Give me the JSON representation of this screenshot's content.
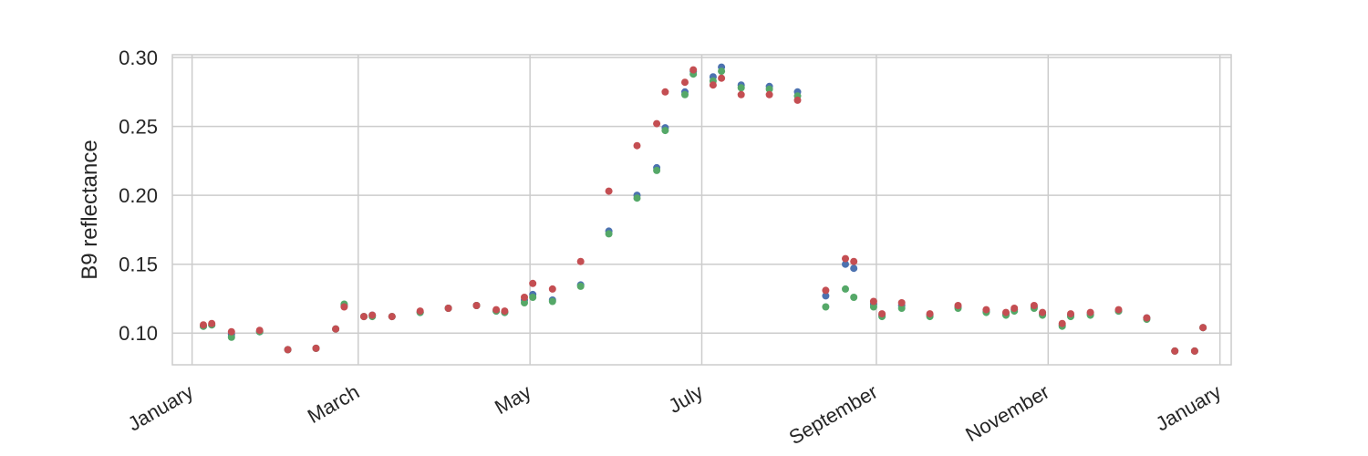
{
  "chart_data": {
    "type": "scatter",
    "title": "",
    "xlabel": "",
    "ylabel": "B9 reflectance",
    "x_axis_type": "date",
    "xlim": [
      "2017-12-25",
      "2019-01-05"
    ],
    "ylim": [
      0.077,
      0.302
    ],
    "x_ticks": [
      {
        "date": "2018-01-01",
        "label": "January"
      },
      {
        "date": "2018-03-01",
        "label": "March"
      },
      {
        "date": "2018-05-01",
        "label": "May"
      },
      {
        "date": "2018-07-01",
        "label": "July"
      },
      {
        "date": "2018-09-01",
        "label": "September"
      },
      {
        "date": "2018-11-01",
        "label": "November"
      },
      {
        "date": "2019-01-01",
        "label": "January"
      }
    ],
    "y_ticks": [
      0.1,
      0.15,
      0.2,
      0.25,
      0.3
    ],
    "y_tick_labels": [
      "0.10",
      "0.15",
      "0.20",
      "0.25",
      "0.30"
    ],
    "grid": true,
    "legend": "none",
    "series": [
      {
        "color": "#4C72B0",
        "points": [
          [
            "2018-01-05",
            0.105
          ],
          [
            "2018-01-08",
            0.106
          ],
          [
            "2018-01-15",
            0.099
          ],
          [
            "2018-01-25",
            0.101
          ],
          [
            "2018-02-04",
            0.088
          ],
          [
            "2018-02-14",
            0.089
          ],
          [
            "2018-02-21",
            0.103
          ],
          [
            "2018-02-24",
            0.12
          ],
          [
            "2018-03-03",
            0.112
          ],
          [
            "2018-03-06",
            0.113
          ],
          [
            "2018-03-13",
            0.112
          ],
          [
            "2018-03-23",
            0.115
          ],
          [
            "2018-04-02",
            0.118
          ],
          [
            "2018-04-12",
            0.12
          ],
          [
            "2018-04-19",
            0.116
          ],
          [
            "2018-04-22",
            0.115
          ],
          [
            "2018-04-29",
            0.124
          ],
          [
            "2018-05-02",
            0.128
          ],
          [
            "2018-05-09",
            0.124
          ],
          [
            "2018-05-19",
            0.135
          ],
          [
            "2018-05-29",
            0.174
          ],
          [
            "2018-06-08",
            0.2
          ],
          [
            "2018-06-15",
            0.22
          ],
          [
            "2018-06-18",
            0.249
          ],
          [
            "2018-06-25",
            0.275
          ],
          [
            "2018-06-28",
            0.29
          ],
          [
            "2018-07-05",
            0.286
          ],
          [
            "2018-07-08",
            0.293
          ],
          [
            "2018-07-15",
            0.28
          ],
          [
            "2018-07-25",
            0.279
          ],
          [
            "2018-08-04",
            0.275
          ],
          [
            "2018-08-14",
            0.127
          ],
          [
            "2018-08-21",
            0.15
          ],
          [
            "2018-08-24",
            0.147
          ],
          [
            "2018-08-31",
            0.121
          ],
          [
            "2018-09-03",
            0.113
          ],
          [
            "2018-09-10",
            0.12
          ],
          [
            "2018-09-20",
            0.113
          ],
          [
            "2018-09-30",
            0.119
          ],
          [
            "2018-10-10",
            0.116
          ],
          [
            "2018-10-17",
            0.114
          ],
          [
            "2018-10-20",
            0.117
          ],
          [
            "2018-10-27",
            0.119
          ],
          [
            "2018-10-30",
            0.114
          ],
          [
            "2018-11-06",
            0.106
          ],
          [
            "2018-11-09",
            0.113
          ],
          [
            "2018-11-16",
            0.114
          ],
          [
            "2018-11-26",
            0.116
          ],
          [
            "2018-12-06",
            0.111
          ],
          [
            "2018-12-16",
            0.087
          ],
          [
            "2018-12-23",
            0.087
          ],
          [
            "2018-12-26",
            0.104
          ]
        ]
      },
      {
        "color": "#55A868",
        "points": [
          [
            "2018-01-05",
            0.105
          ],
          [
            "2018-01-08",
            0.106
          ],
          [
            "2018-01-15",
            0.097
          ],
          [
            "2018-01-25",
            0.101
          ],
          [
            "2018-02-04",
            0.088
          ],
          [
            "2018-02-14",
            0.089
          ],
          [
            "2018-02-21",
            0.103
          ],
          [
            "2018-02-24",
            0.121
          ],
          [
            "2018-03-03",
            0.112
          ],
          [
            "2018-03-06",
            0.112
          ],
          [
            "2018-03-13",
            0.112
          ],
          [
            "2018-03-23",
            0.115
          ],
          [
            "2018-04-02",
            0.118
          ],
          [
            "2018-04-12",
            0.12
          ],
          [
            "2018-04-19",
            0.116
          ],
          [
            "2018-04-22",
            0.115
          ],
          [
            "2018-04-29",
            0.122
          ],
          [
            "2018-05-02",
            0.126
          ],
          [
            "2018-05-09",
            0.123
          ],
          [
            "2018-05-19",
            0.134
          ],
          [
            "2018-05-29",
            0.172
          ],
          [
            "2018-06-08",
            0.198
          ],
          [
            "2018-06-15",
            0.218
          ],
          [
            "2018-06-18",
            0.247
          ],
          [
            "2018-06-25",
            0.273
          ],
          [
            "2018-06-28",
            0.288
          ],
          [
            "2018-07-05",
            0.283
          ],
          [
            "2018-07-08",
            0.29
          ],
          [
            "2018-07-15",
            0.278
          ],
          [
            "2018-07-25",
            0.277
          ],
          [
            "2018-08-04",
            0.272
          ],
          [
            "2018-08-14",
            0.119
          ],
          [
            "2018-08-21",
            0.132
          ],
          [
            "2018-08-24",
            0.126
          ],
          [
            "2018-08-31",
            0.119
          ],
          [
            "2018-09-03",
            0.112
          ],
          [
            "2018-09-10",
            0.118
          ],
          [
            "2018-09-20",
            0.112
          ],
          [
            "2018-09-30",
            0.118
          ],
          [
            "2018-10-10",
            0.115
          ],
          [
            "2018-10-17",
            0.113
          ],
          [
            "2018-10-20",
            0.116
          ],
          [
            "2018-10-27",
            0.118
          ],
          [
            "2018-10-30",
            0.113
          ],
          [
            "2018-11-06",
            0.105
          ],
          [
            "2018-11-09",
            0.112
          ],
          [
            "2018-11-16",
            0.113
          ],
          [
            "2018-11-26",
            0.116
          ],
          [
            "2018-12-06",
            0.11
          ],
          [
            "2018-12-16",
            0.087
          ],
          [
            "2018-12-23",
            0.087
          ],
          [
            "2018-12-26",
            0.104
          ]
        ]
      },
      {
        "color": "#C44E52",
        "points": [
          [
            "2018-01-05",
            0.106
          ],
          [
            "2018-01-08",
            0.107
          ],
          [
            "2018-01-15",
            0.101
          ],
          [
            "2018-01-25",
            0.102
          ],
          [
            "2018-02-04",
            0.088
          ],
          [
            "2018-02-14",
            0.089
          ],
          [
            "2018-02-21",
            0.103
          ],
          [
            "2018-02-24",
            0.119
          ],
          [
            "2018-03-03",
            0.112
          ],
          [
            "2018-03-06",
            0.113
          ],
          [
            "2018-03-13",
            0.112
          ],
          [
            "2018-03-23",
            0.116
          ],
          [
            "2018-04-02",
            0.118
          ],
          [
            "2018-04-12",
            0.12
          ],
          [
            "2018-04-19",
            0.117
          ],
          [
            "2018-04-22",
            0.116
          ],
          [
            "2018-04-29",
            0.126
          ],
          [
            "2018-05-02",
            0.136
          ],
          [
            "2018-05-09",
            0.132
          ],
          [
            "2018-05-19",
            0.152
          ],
          [
            "2018-05-29",
            0.203
          ],
          [
            "2018-06-08",
            0.236
          ],
          [
            "2018-06-15",
            0.252
          ],
          [
            "2018-06-18",
            0.275
          ],
          [
            "2018-06-25",
            0.282
          ],
          [
            "2018-06-28",
            0.291
          ],
          [
            "2018-07-05",
            0.28
          ],
          [
            "2018-07-08",
            0.285
          ],
          [
            "2018-07-15",
            0.273
          ],
          [
            "2018-07-25",
            0.273
          ],
          [
            "2018-08-04",
            0.269
          ],
          [
            "2018-08-14",
            0.131
          ],
          [
            "2018-08-21",
            0.154
          ],
          [
            "2018-08-24",
            0.152
          ],
          [
            "2018-08-31",
            0.123
          ],
          [
            "2018-09-03",
            0.114
          ],
          [
            "2018-09-10",
            0.122
          ],
          [
            "2018-09-20",
            0.114
          ],
          [
            "2018-09-30",
            0.12
          ],
          [
            "2018-10-10",
            0.117
          ],
          [
            "2018-10-17",
            0.115
          ],
          [
            "2018-10-20",
            0.118
          ],
          [
            "2018-10-27",
            0.12
          ],
          [
            "2018-10-30",
            0.115
          ],
          [
            "2018-11-06",
            0.107
          ],
          [
            "2018-11-09",
            0.114
          ],
          [
            "2018-11-16",
            0.115
          ],
          [
            "2018-11-26",
            0.117
          ],
          [
            "2018-12-06",
            0.111
          ],
          [
            "2018-12-16",
            0.087
          ],
          [
            "2018-12-23",
            0.087
          ],
          [
            "2018-12-26",
            0.104
          ]
        ]
      }
    ]
  }
}
